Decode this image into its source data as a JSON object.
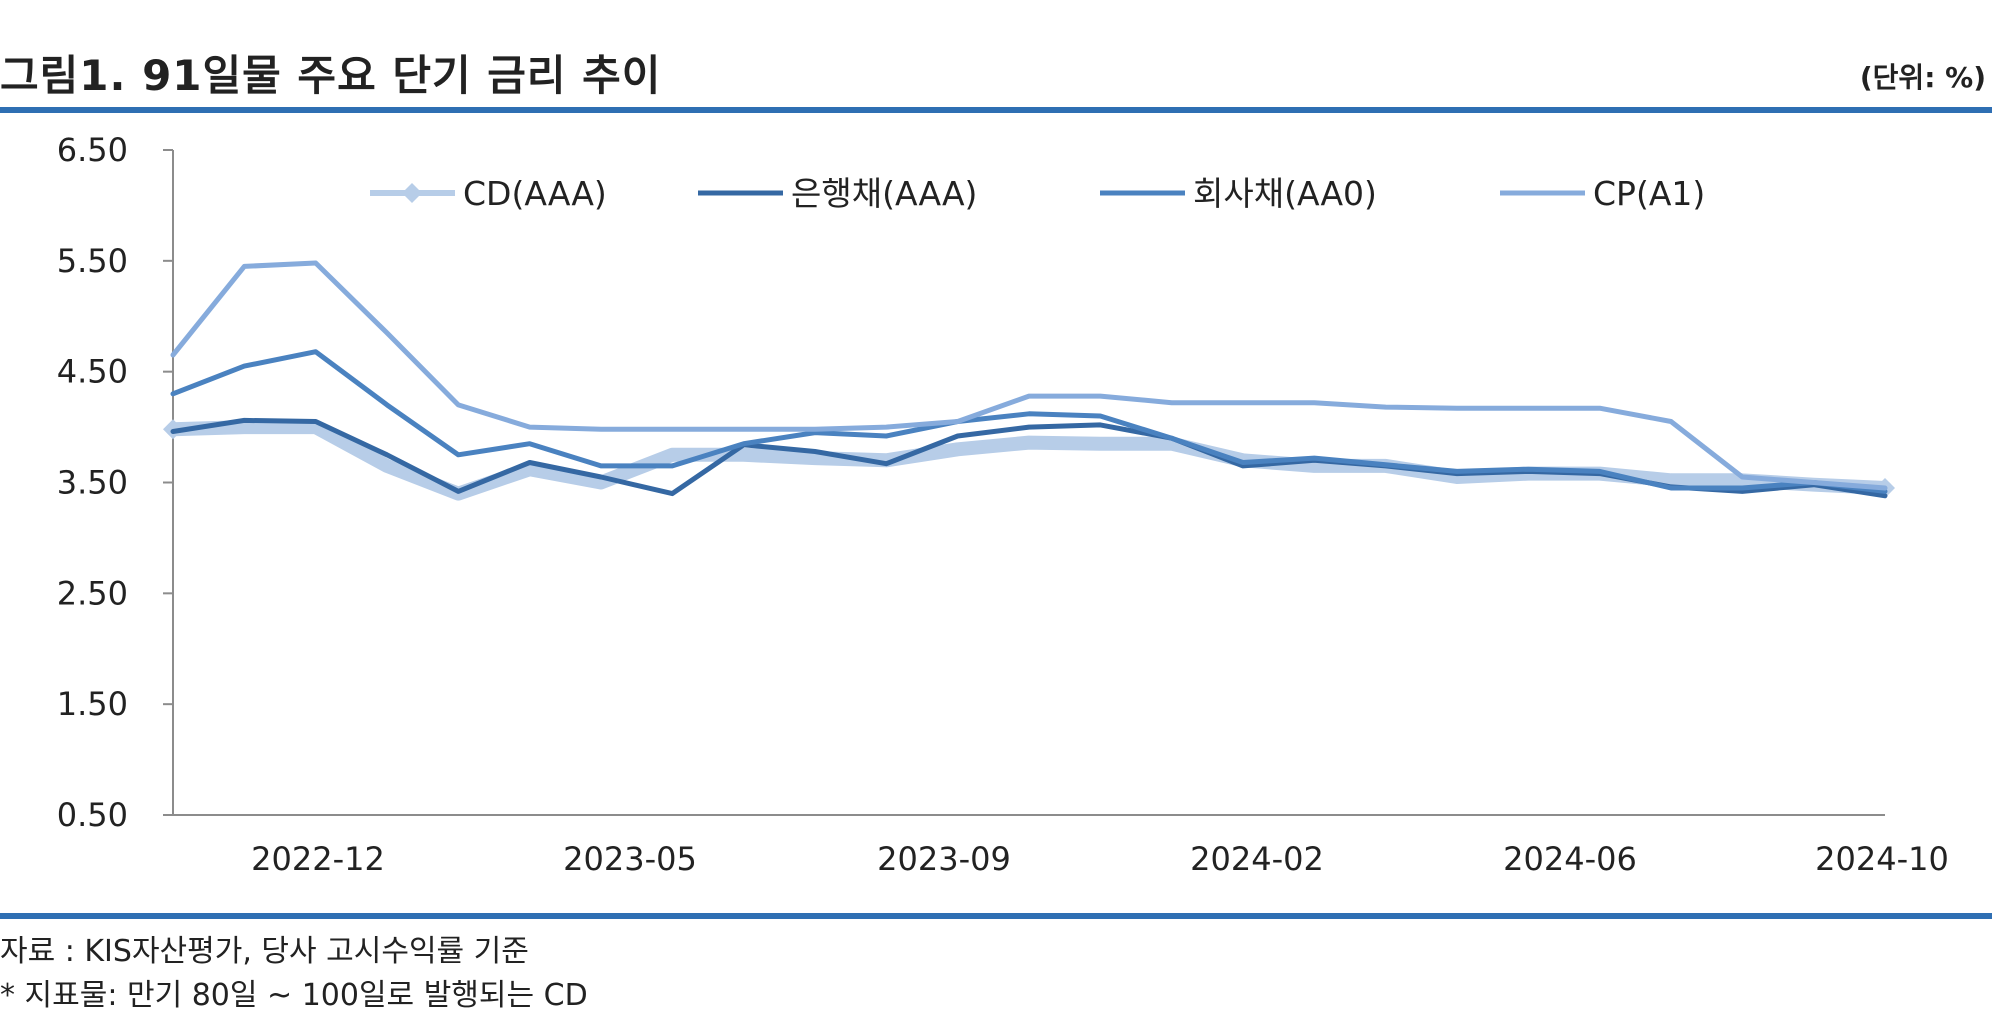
{
  "title": "그림1. 91일물 주요 단기 금리 추이",
  "unit": "(단위: %)",
  "notes": {
    "source": "자료 : KIS자산평가, 당사 고시수익률 기준",
    "footnote": "* 지표물: 만기 80일 ~ 100일로 발행되는 CD"
  },
  "colors": {
    "rule": "#2f6fb3",
    "cd": "#b7cde8",
    "bank": "#3568a3",
    "corp": "#4a82c0",
    "cp": "#86abdc",
    "axis": "#8c8c8c"
  },
  "chart_data": {
    "type": "line",
    "ylim": [
      0.5,
      6.5
    ],
    "yticks": [
      "6.50",
      "5.50",
      "4.50",
      "3.50",
      "2.50",
      "1.50",
      "0.50"
    ],
    "xticks": [
      "2022-12",
      "2023-05",
      "2023-09",
      "2024-02",
      "2024-06",
      "2024-10"
    ],
    "x": [
      "2022-10",
      "2022-11",
      "2022-12",
      "2023-01",
      "2023-02",
      "2023-03",
      "2023-04",
      "2023-05",
      "2023-06",
      "2023-07",
      "2023-08",
      "2023-09",
      "2023-10",
      "2023-11",
      "2023-12",
      "2024-01",
      "2024-02",
      "2024-03",
      "2024-04",
      "2024-05",
      "2024-06",
      "2024-07",
      "2024-08",
      "2024-09",
      "2024-10"
    ],
    "series": [
      {
        "name": "CD(AAA)",
        "marker": "diamond",
        "values": [
          3.98,
          4.0,
          4.0,
          3.65,
          3.4,
          3.62,
          3.5,
          3.75,
          3.75,
          3.72,
          3.7,
          3.8,
          3.86,
          3.85,
          3.85,
          3.7,
          3.65,
          3.65,
          3.55,
          3.58,
          3.58,
          3.52,
          3.52,
          3.48,
          3.45
        ]
      },
      {
        "name": "은행채(AAA)",
        "marker": "none",
        "values": [
          3.96,
          4.06,
          4.05,
          3.75,
          3.42,
          3.68,
          3.55,
          3.4,
          3.84,
          3.78,
          3.67,
          3.92,
          4.0,
          4.02,
          3.9,
          3.65,
          3.7,
          3.65,
          3.58,
          3.6,
          3.58,
          3.46,
          3.42,
          3.48,
          3.38
        ]
      },
      {
        "name": "회사채(AA0)",
        "marker": "none",
        "values": [
          4.3,
          4.55,
          4.68,
          4.2,
          3.75,
          3.85,
          3.65,
          3.65,
          3.85,
          3.95,
          3.92,
          4.05,
          4.12,
          4.1,
          3.9,
          3.68,
          3.72,
          3.66,
          3.6,
          3.62,
          3.6,
          3.45,
          3.45,
          3.5,
          3.42
        ]
      },
      {
        "name": "CP(A1)",
        "marker": "none",
        "values": [
          4.65,
          5.45,
          5.48,
          4.85,
          4.2,
          4.0,
          3.98,
          3.98,
          3.98,
          3.98,
          4.0,
          4.05,
          4.28,
          4.28,
          4.22,
          4.22,
          4.22,
          4.18,
          4.17,
          4.17,
          4.17,
          4.05,
          3.55,
          3.5,
          3.45
        ]
      }
    ]
  }
}
